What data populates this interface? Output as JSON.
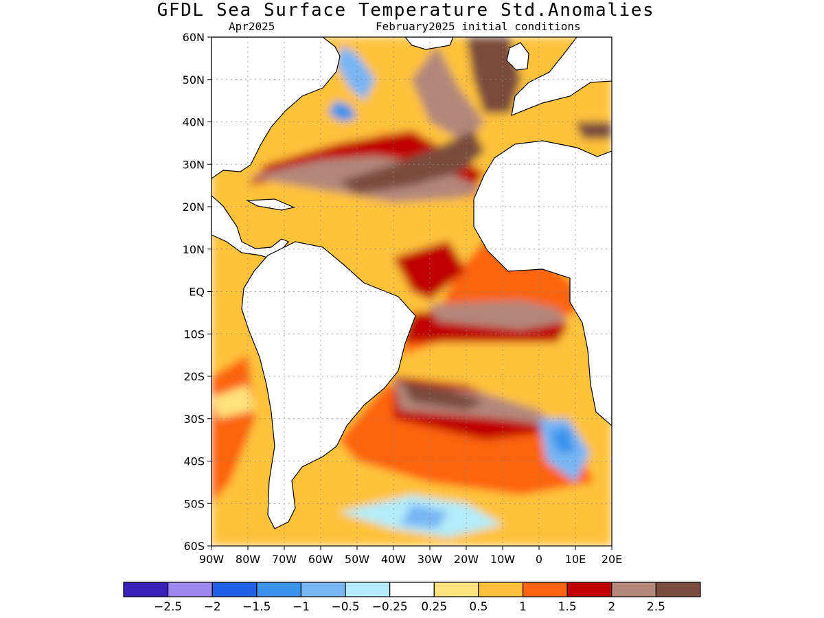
{
  "title": "GFDL Sea Surface Temperature Std.Anomalies",
  "subtitle_left": "Apr2025",
  "subtitle_right": "February2025 initial conditions",
  "map": {
    "lon_min": -90,
    "lon_max": 20,
    "lat_min": -60,
    "lat_max": 60,
    "lat_ticks": [
      {
        "value": 60,
        "label": "60N"
      },
      {
        "value": 50,
        "label": "50N"
      },
      {
        "value": 40,
        "label": "40N"
      },
      {
        "value": 30,
        "label": "30N"
      },
      {
        "value": 20,
        "label": "20N"
      },
      {
        "value": 10,
        "label": "10N"
      },
      {
        "value": 0,
        "label": "EQ"
      },
      {
        "value": -10,
        "label": "10S"
      },
      {
        "value": -20,
        "label": "20S"
      },
      {
        "value": -30,
        "label": "30S"
      },
      {
        "value": -40,
        "label": "40S"
      },
      {
        "value": -50,
        "label": "50S"
      },
      {
        "value": -60,
        "label": "60S"
      }
    ],
    "lon_ticks": [
      {
        "value": -90,
        "label": "90W"
      },
      {
        "value": -80,
        "label": "80W"
      },
      {
        "value": -70,
        "label": "70W"
      },
      {
        "value": -60,
        "label": "60W"
      },
      {
        "value": -50,
        "label": "50W"
      },
      {
        "value": -40,
        "label": "40W"
      },
      {
        "value": -30,
        "label": "30W"
      },
      {
        "value": -20,
        "label": "20W"
      },
      {
        "value": -10,
        "label": "10W"
      },
      {
        "value": 0,
        "label": "0"
      },
      {
        "value": 10,
        "label": "10E"
      },
      {
        "value": 20,
        "label": "20E"
      }
    ]
  },
  "colorbar": {
    "colors": [
      "#3a20b8",
      "#9d87ee",
      "#2060e8",
      "#3b93ee",
      "#78b6f4",
      "#b3edf9",
      "#ffffff",
      "#ffe27a",
      "#ffc23a",
      "#fe6410",
      "#c00000",
      "#b4877a",
      "#7a4b3e"
    ],
    "labels": [
      "−2.5",
      "−2",
      "−1.5",
      "−1",
      "−0.5",
      "−0.25",
      "0.25",
      "0.5",
      "1",
      "1.5",
      "2",
      "2.5"
    ]
  },
  "anomaly_regions": [
    {
      "level": 0.5,
      "polygon": [
        [
          -90,
          60
        ],
        [
          20,
          60
        ],
        [
          20,
          -60
        ],
        [
          -90,
          -60
        ]
      ]
    },
    {
      "level": 1,
      "polygon": [
        [
          -45,
          38
        ],
        [
          -20,
          25
        ],
        [
          -12,
          15
        ],
        [
          -22,
          5
        ],
        [
          -28,
          -5
        ],
        [
          -35,
          -8
        ],
        [
          -38,
          -15
        ],
        [
          -20,
          -10
        ],
        [
          0,
          -8
        ],
        [
          10,
          -5
        ],
        [
          12,
          0
        ],
        [
          5,
          5
        ],
        [
          -10,
          12
        ],
        [
          -16,
          22
        ],
        [
          -35,
          35
        ]
      ]
    },
    {
      "level": 1,
      "polygon": [
        [
          -42,
          -22
        ],
        [
          -10,
          -28
        ],
        [
          10,
          -35
        ],
        [
          15,
          -45
        ],
        [
          -5,
          -48
        ],
        [
          -30,
          -45
        ],
        [
          -50,
          -40
        ],
        [
          -55,
          -35
        ]
      ]
    },
    {
      "level": 1,
      "polygon": [
        [
          -90,
          -20
        ],
        [
          -80,
          -15
        ],
        [
          -78,
          -30
        ],
        [
          -85,
          -45
        ],
        [
          -90,
          -50
        ]
      ]
    },
    {
      "level": 1.5,
      "polygon": [
        [
          -40,
          8
        ],
        [
          -25,
          12
        ],
        [
          -20,
          5
        ],
        [
          -30,
          -2
        ],
        [
          -35,
          0
        ]
      ]
    },
    {
      "level": 1.5,
      "polygon": [
        [
          -80,
          25
        ],
        [
          -60,
          28
        ],
        [
          -40,
          26
        ],
        [
          -20,
          22
        ],
        [
          -15,
          28
        ],
        [
          -35,
          38
        ],
        [
          -55,
          35
        ],
        [
          -75,
          30
        ]
      ]
    },
    {
      "level": 1.5,
      "polygon": [
        [
          -35,
          -5
        ],
        [
          -5,
          -3
        ],
        [
          8,
          -8
        ],
        [
          5,
          -12
        ],
        [
          -20,
          -12
        ],
        [
          -38,
          -12
        ]
      ]
    },
    {
      "level": 1.5,
      "polygon": [
        [
          -40,
          -20
        ],
        [
          -20,
          -22
        ],
        [
          -5,
          -28
        ],
        [
          5,
          -33
        ],
        [
          -15,
          -35
        ],
        [
          -40,
          -30
        ]
      ]
    },
    {
      "level": 2,
      "polygon": [
        [
          -80,
          27
        ],
        [
          -60,
          24
        ],
        [
          -40,
          21
        ],
        [
          -22,
          22
        ],
        [
          -15,
          24
        ],
        [
          -30,
          30
        ],
        [
          -45,
          32
        ],
        [
          -60,
          31
        ],
        [
          -75,
          28
        ]
      ]
    },
    {
      "level": 2,
      "polygon": [
        [
          -30,
          -3
        ],
        [
          -5,
          -2
        ],
        [
          5,
          -4
        ],
        [
          8,
          -7
        ],
        [
          -5,
          -9
        ],
        [
          -28,
          -7
        ]
      ]
    },
    {
      "level": 2,
      "polygon": [
        [
          -40,
          -21
        ],
        [
          -15,
          -24
        ],
        [
          0,
          -28
        ],
        [
          5,
          -32
        ],
        [
          -10,
          -30
        ],
        [
          -38,
          -28
        ]
      ]
    },
    {
      "level": 2,
      "polygon": [
        [
          -28,
          58
        ],
        [
          -22,
          48
        ],
        [
          -15,
          40
        ],
        [
          -20,
          35
        ],
        [
          -30,
          40
        ],
        [
          -35,
          50
        ]
      ]
    },
    {
      "level": 2.5,
      "polygon": [
        [
          -55,
          26
        ],
        [
          -40,
          30
        ],
        [
          -28,
          34
        ],
        [
          -18,
          38
        ],
        [
          -15,
          33
        ],
        [
          -22,
          28
        ],
        [
          -35,
          25
        ],
        [
          -50,
          23
        ]
      ]
    },
    {
      "level": 2.5,
      "polygon": [
        [
          -20,
          60
        ],
        [
          -8,
          60
        ],
        [
          -5,
          50
        ],
        [
          -8,
          42
        ],
        [
          -15,
          42
        ],
        [
          -18,
          50
        ]
      ]
    },
    {
      "level": 2.5,
      "polygon": [
        [
          -38,
          -21
        ],
        [
          -25,
          -23
        ],
        [
          -15,
          -26
        ],
        [
          -20,
          -28
        ],
        [
          -35,
          -26
        ]
      ]
    },
    {
      "level": 2.5,
      "polygon": [
        [
          10,
          40
        ],
        [
          20,
          40
        ],
        [
          20,
          36
        ],
        [
          12,
          36
        ]
      ]
    },
    {
      "level": -1,
      "polygon": [
        [
          -54,
          58
        ],
        [
          -50,
          56
        ],
        [
          -45,
          50
        ],
        [
          -48,
          45
        ],
        [
          -52,
          48
        ],
        [
          -56,
          54
        ]
      ]
    },
    {
      "level": -1.5,
      "polygon": [
        [
          -56,
          45
        ],
        [
          -52,
          44
        ],
        [
          -50,
          41
        ],
        [
          -54,
          40
        ],
        [
          -58,
          42
        ]
      ]
    },
    {
      "level": -0.5,
      "polygon": [
        [
          -35,
          -48
        ],
        [
          -20,
          -50
        ],
        [
          -10,
          -55
        ],
        [
          -25,
          -58
        ],
        [
          -40,
          -56
        ],
        [
          -55,
          -52
        ]
      ]
    },
    {
      "level": -1,
      "polygon": [
        [
          -35,
          -50
        ],
        [
          -25,
          -52
        ],
        [
          -28,
          -56
        ],
        [
          -38,
          -55
        ]
      ]
    },
    {
      "level": -1,
      "polygon": [
        [
          0,
          -30
        ],
        [
          8,
          -30
        ],
        [
          14,
          -38
        ],
        [
          10,
          -45
        ],
        [
          2,
          -40
        ]
      ]
    },
    {
      "level": -1.5,
      "polygon": [
        [
          3,
          -33
        ],
        [
          8,
          -32
        ],
        [
          10,
          -38
        ],
        [
          5,
          -38
        ]
      ]
    },
    {
      "level": 0.25,
      "polygon": [
        [
          -90,
          -25
        ],
        [
          -80,
          -22
        ],
        [
          -78,
          -28
        ],
        [
          -88,
          -30
        ]
      ]
    }
  ]
}
